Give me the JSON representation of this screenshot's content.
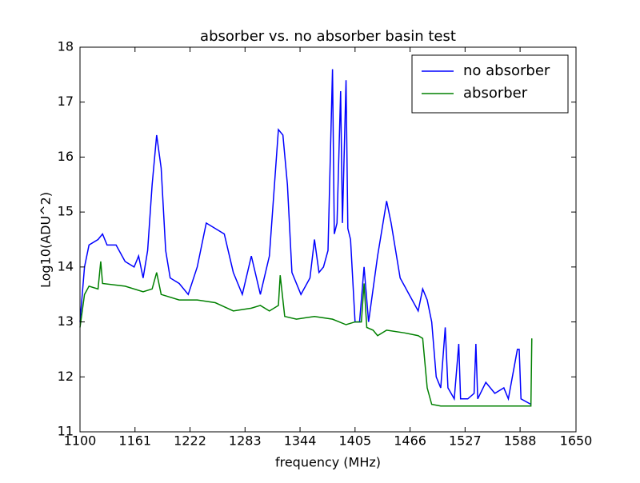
{
  "chart_data": {
    "type": "line",
    "title": "absorber vs. no absorber basin test",
    "x_label": "frequency (MHz)",
    "y_label": "Log10(ADU^2)",
    "xlim": [
      1100,
      1650
    ],
    "xticks": [
      1100,
      1161,
      1222,
      1283,
      1344,
      1405,
      1466,
      1527,
      1588,
      1650
    ],
    "ylim": [
      11,
      18
    ],
    "yticks": [
      11,
      12,
      13,
      14,
      15,
      16,
      17,
      18
    ],
    "legend": "upper right",
    "series": [
      {
        "name": "no absorber",
        "color": "#0000ff",
        "x": [
          1100,
          1105,
          1110,
          1120,
          1125,
          1130,
          1140,
          1150,
          1160,
          1165,
          1170,
          1175,
          1180,
          1185,
          1190,
          1195,
          1200,
          1210,
          1220,
          1230,
          1240,
          1250,
          1260,
          1270,
          1280,
          1290,
          1300,
          1310,
          1320,
          1325,
          1330,
          1335,
          1345,
          1355,
          1360,
          1365,
          1370,
          1375,
          1380,
          1382,
          1385,
          1389,
          1391,
          1395,
          1397,
          1400,
          1405,
          1410,
          1415,
          1420,
          1425,
          1430,
          1440,
          1445,
          1455,
          1465,
          1475,
          1480,
          1485,
          1490,
          1495,
          1500,
          1505,
          1508,
          1515,
          1520,
          1522,
          1530,
          1537,
          1539,
          1541,
          1550,
          1560,
          1570,
          1575,
          1585,
          1587,
          1589,
          1600
        ],
        "values": [
          13.0,
          14.0,
          14.4,
          14.5,
          14.6,
          14.4,
          14.4,
          14.1,
          14.0,
          14.2,
          13.8,
          14.3,
          15.5,
          16.4,
          15.8,
          14.3,
          13.8,
          13.7,
          13.5,
          14.0,
          14.8,
          14.7,
          14.6,
          13.9,
          13.5,
          14.2,
          13.5,
          14.2,
          16.5,
          16.4,
          15.5,
          13.9,
          13.5,
          13.8,
          14.5,
          13.9,
          14.0,
          14.3,
          17.6,
          14.6,
          14.8,
          17.2,
          14.8,
          17.4,
          14.7,
          14.5,
          13.0,
          13.0,
          14.0,
          13.0,
          13.6,
          14.2,
          15.2,
          14.8,
          13.8,
          13.5,
          13.2,
          13.6,
          13.4,
          13.0,
          12.0,
          11.8,
          12.9,
          11.8,
          11.6,
          12.6,
          11.6,
          11.6,
          11.7,
          12.6,
          11.6,
          11.9,
          11.7,
          11.8,
          11.6,
          12.5,
          12.5,
          11.6,
          11.5
        ]
      },
      {
        "name": "absorber",
        "color": "#008000",
        "x": [
          1100,
          1105,
          1110,
          1120,
          1123,
          1125,
          1150,
          1170,
          1180,
          1185,
          1190,
          1210,
          1230,
          1250,
          1270,
          1290,
          1300,
          1310,
          1320,
          1322,
          1327,
          1340,
          1360,
          1380,
          1395,
          1405,
          1412,
          1415,
          1418,
          1425,
          1430,
          1440,
          1460,
          1475,
          1480,
          1485,
          1490,
          1500,
          1540,
          1590,
          1600,
          1601
        ],
        "values": [
          12.9,
          13.5,
          13.65,
          13.6,
          14.1,
          13.7,
          13.65,
          13.55,
          13.6,
          13.9,
          13.5,
          13.4,
          13.4,
          13.35,
          13.2,
          13.25,
          13.3,
          13.2,
          13.3,
          13.85,
          13.1,
          13.05,
          13.1,
          13.05,
          12.95,
          13.0,
          13.0,
          13.7,
          12.9,
          12.85,
          12.75,
          12.85,
          12.8,
          12.75,
          12.7,
          11.8,
          11.5,
          11.47,
          11.47,
          11.47,
          11.47,
          12.7
        ]
      }
    ]
  }
}
